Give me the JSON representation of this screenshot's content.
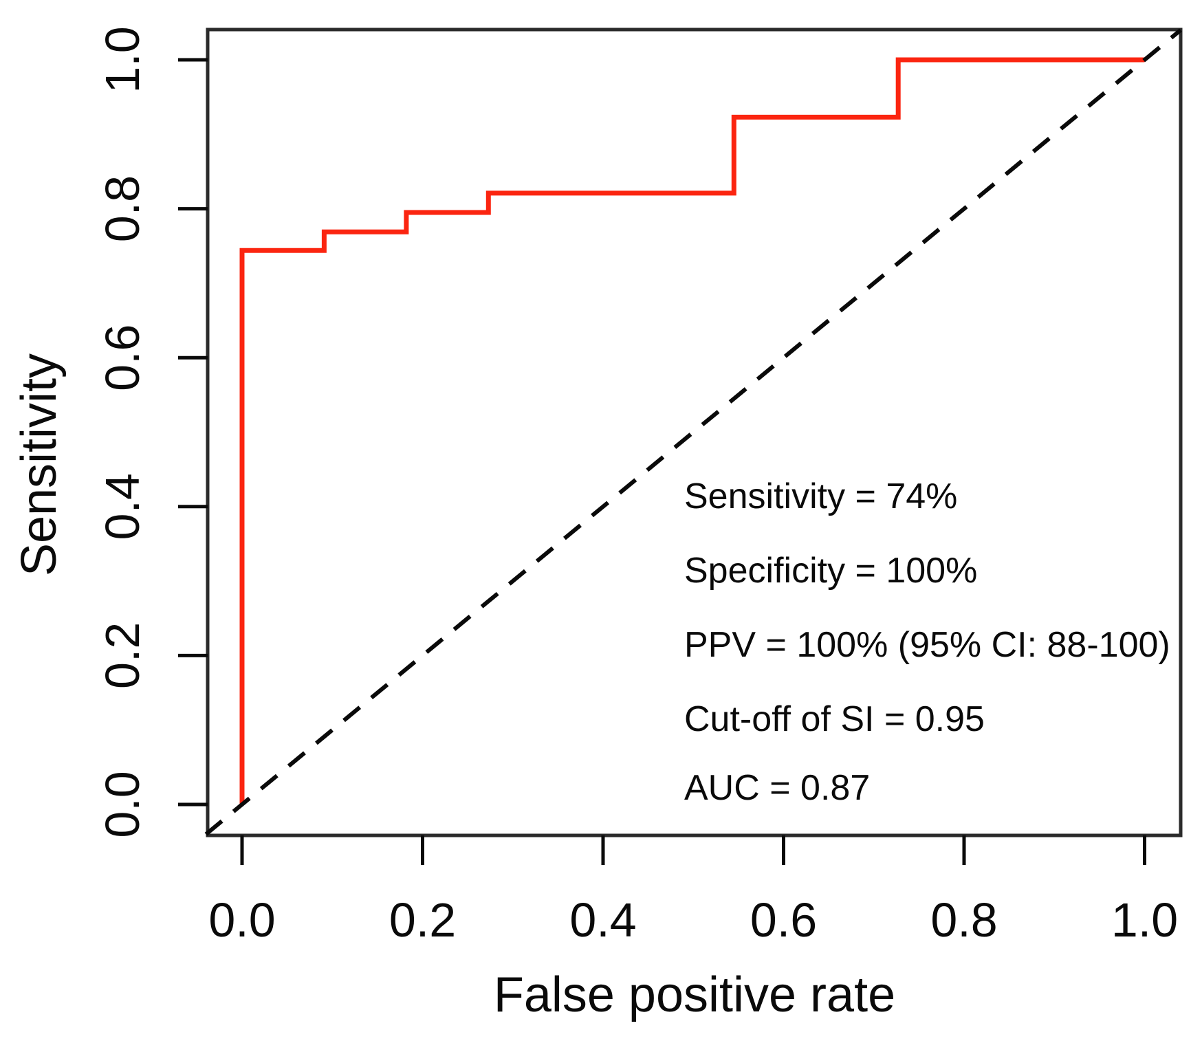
{
  "chart_data": {
    "type": "line",
    "title": "",
    "xlabel": "False positive rate",
    "ylabel": "Sensitivity",
    "x_ticks": [
      "0.0",
      "0.2",
      "0.4",
      "0.6",
      "0.8",
      "1.0"
    ],
    "y_ticks": [
      "0.0",
      "0.2",
      "0.4",
      "0.6",
      "0.8",
      "1.0"
    ],
    "xlim": [
      -0.04,
      1.04
    ],
    "ylim": [
      -0.04,
      1.04
    ],
    "grid": false,
    "legend": "none",
    "series": [
      {
        "name": "ROC step curve",
        "color": "#fb2510",
        "style": "solid",
        "points": [
          [
            0.0,
            0.0
          ],
          [
            0.0,
            0.744
          ],
          [
            0.091,
            0.744
          ],
          [
            0.091,
            0.769
          ],
          [
            0.182,
            0.769
          ],
          [
            0.182,
            0.795
          ],
          [
            0.273,
            0.795
          ],
          [
            0.273,
            0.821
          ],
          [
            0.545,
            0.821
          ],
          [
            0.545,
            0.923
          ],
          [
            0.727,
            0.923
          ],
          [
            0.727,
            1.0
          ],
          [
            1.0,
            1.0
          ]
        ]
      },
      {
        "name": "chance diagonal (y = x)",
        "color": "#0a0a0a",
        "style": "dashed",
        "points": [
          [
            -0.04,
            -0.04
          ],
          [
            1.04,
            1.04
          ]
        ]
      }
    ],
    "annotations": [
      "Sensitivity = 74%",
      "Specificity = 100%",
      "PPV = 100% (95% CI: 88-100)",
      "Cut-off of SI = 0.95",
      "AUC = 0.87"
    ]
  },
  "colors": {
    "curve": "#fb2510",
    "axis": "#0a0a0a",
    "background": "#ffffff"
  }
}
